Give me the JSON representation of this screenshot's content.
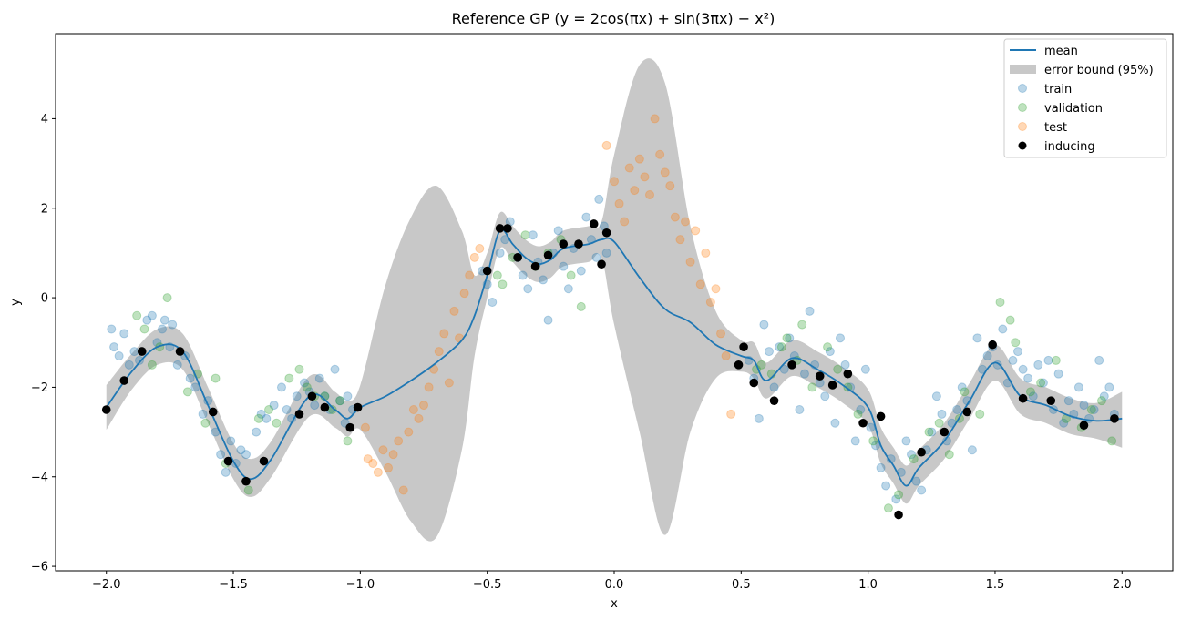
{
  "chart_data": {
    "type": "line",
    "title": "Reference GP (y = 2cos(πx) + sin(3πx) − x²)",
    "xlabel": "x",
    "ylabel": "y",
    "xlim": [
      -2.2,
      2.2
    ],
    "ylim": [
      -6.1,
      5.9
    ],
    "x_ticks": [
      -2.0,
      -1.5,
      -1.0,
      -0.5,
      0.0,
      0.5,
      1.0,
      1.5,
      2.0
    ],
    "x_tick_labels": [
      "−2.0",
      "−1.5",
      "−1.0",
      "−0.5",
      "0.0",
      "0.5",
      "1.0",
      "1.5",
      "2.0"
    ],
    "y_ticks": [
      -6,
      -4,
      -2,
      0,
      2,
      4
    ],
    "y_tick_labels": [
      "−6",
      "−4",
      "−2",
      "0",
      "2",
      "4"
    ],
    "grid": false,
    "legend_position": "top-right",
    "legend": [
      "mean",
      "error bound (95%)",
      "train",
      "validation",
      "test",
      "inducing"
    ],
    "colors": {
      "mean": "#1f77b4",
      "band": "#c8c8c8",
      "train": "#1f77b4",
      "validation": "#2ca02c",
      "test": "#ff7f0e",
      "inducing": "#000000"
    },
    "series": [
      {
        "name": "mean",
        "x": [
          -2.0,
          -1.9,
          -1.8,
          -1.7,
          -1.6,
          -1.5,
          -1.43,
          -1.35,
          -1.2,
          -1.1,
          -1.05,
          -1.0,
          -0.9,
          -0.8,
          -0.7,
          -0.6,
          -0.55,
          -0.5,
          -0.45,
          -0.4,
          -0.35,
          -0.3,
          -0.25,
          -0.2,
          -0.1,
          -0.05,
          0.0,
          0.1,
          0.2,
          0.3,
          0.4,
          0.5,
          0.55,
          0.6,
          0.7,
          0.8,
          0.9,
          1.0,
          1.05,
          1.1,
          1.15,
          1.2,
          1.3,
          1.4,
          1.5,
          1.6,
          1.7,
          1.8,
          1.9,
          2.0
        ],
        "y": [
          -2.45,
          -1.65,
          -1.1,
          -1.2,
          -2.4,
          -3.65,
          -4.05,
          -3.6,
          -2.2,
          -2.5,
          -2.7,
          -2.45,
          -2.2,
          -1.85,
          -1.45,
          -0.95,
          -0.4,
          0.5,
          1.5,
          1.2,
          0.9,
          0.75,
          0.85,
          1.1,
          1.2,
          1.3,
          1.25,
          0.45,
          -0.25,
          -0.55,
          -1.05,
          -1.3,
          -1.4,
          -1.85,
          -1.35,
          -1.6,
          -1.95,
          -2.45,
          -3.3,
          -3.75,
          -4.2,
          -3.8,
          -3.2,
          -2.3,
          -1.45,
          -2.2,
          -2.4,
          -2.65,
          -2.75,
          -2.7
        ]
      },
      {
        "name": "error bound (95%)",
        "x": [
          -2.0,
          -1.9,
          -1.8,
          -1.7,
          -1.6,
          -1.5,
          -1.43,
          -1.35,
          -1.2,
          -1.1,
          -1.05,
          -1.0,
          -0.9,
          -0.8,
          -0.7,
          -0.6,
          -0.55,
          -0.5,
          -0.45,
          -0.4,
          -0.35,
          -0.3,
          -0.25,
          -0.2,
          -0.1,
          -0.05,
          0.0,
          0.1,
          0.2,
          0.3,
          0.4,
          0.5,
          0.55,
          0.6,
          0.7,
          0.8,
          0.9,
          1.0,
          1.05,
          1.1,
          1.15,
          1.2,
          1.3,
          1.4,
          1.5,
          1.6,
          1.7,
          1.8,
          1.9,
          2.0
        ],
        "upper": [
          -1.95,
          -1.25,
          -0.7,
          -0.8,
          -2.0,
          -3.25,
          -3.6,
          -3.2,
          -1.75,
          -2.1,
          -2.3,
          -1.95,
          0.3,
          1.8,
          2.5,
          1.5,
          0.5,
          1.0,
          1.9,
          1.6,
          1.3,
          1.15,
          1.25,
          1.5,
          1.6,
          1.7,
          3.2,
          5.2,
          4.8,
          1.6,
          -0.3,
          -0.95,
          -1.0,
          -1.45,
          -0.95,
          -1.2,
          -1.55,
          -2.05,
          -2.9,
          -3.35,
          -3.75,
          -3.4,
          -2.8,
          -1.9,
          -1.05,
          -1.8,
          -2.0,
          -2.25,
          -2.35,
          -2.1
        ],
        "lower": [
          -2.95,
          -2.05,
          -1.5,
          -1.6,
          -2.8,
          -4.05,
          -4.45,
          -4.0,
          -2.65,
          -2.9,
          -3.1,
          -2.95,
          -3.9,
          -5.0,
          -5.35,
          -3.4,
          -1.3,
          0.0,
          1.1,
          0.8,
          0.5,
          0.35,
          0.45,
          0.7,
          0.8,
          0.9,
          -0.6,
          -3.0,
          -5.3,
          -3.0,
          -1.8,
          -1.65,
          -1.8,
          -2.25,
          -1.75,
          -2.0,
          -2.35,
          -2.85,
          -3.7,
          -4.15,
          -4.6,
          -4.2,
          -3.6,
          -2.7,
          -1.85,
          -2.6,
          -2.8,
          -3.05,
          -3.15,
          -3.35
        ]
      },
      {
        "name": "train",
        "x": [
          -1.98,
          -1.97,
          -1.95,
          -1.93,
          -1.91,
          -1.89,
          -1.87,
          -1.84,
          -1.82,
          -1.8,
          -1.78,
          -1.77,
          -1.75,
          -1.74,
          -1.72,
          -1.69,
          -1.67,
          -1.65,
          -1.62,
          -1.6,
          -1.57,
          -1.55,
          -1.53,
          -1.51,
          -1.49,
          -1.47,
          -1.45,
          -1.41,
          -1.39,
          -1.37,
          -1.34,
          -1.31,
          -1.29,
          -1.27,
          -1.25,
          -1.22,
          -1.2,
          -1.18,
          -1.16,
          -1.14,
          -1.12,
          -1.1,
          -1.08,
          -1.06,
          -1.05,
          -1.03,
          -0.52,
          -0.5,
          -0.48,
          -0.45,
          -0.43,
          -0.41,
          -0.38,
          -0.36,
          -0.34,
          -0.32,
          -0.3,
          -0.28,
          -0.26,
          -0.24,
          -0.22,
          -0.2,
          -0.18,
          -0.16,
          -0.13,
          -0.11,
          -0.09,
          -0.07,
          -0.06,
          -0.04,
          -0.03,
          0.53,
          0.55,
          0.57,
          0.59,
          0.61,
          0.63,
          0.65,
          0.67,
          0.69,
          0.71,
          0.73,
          0.75,
          0.77,
          0.79,
          0.81,
          0.83,
          0.85,
          0.87,
          0.89,
          0.91,
          0.93,
          0.95,
          0.97,
          0.99,
          1.01,
          1.03,
          1.05,
          1.07,
          1.09,
          1.11,
          1.13,
          1.15,
          1.17,
          1.19,
          1.21,
          1.23,
          1.25,
          1.27,
          1.29,
          1.31,
          1.33,
          1.35,
          1.37,
          1.39,
          1.41,
          1.43,
          1.45,
          1.47,
          1.49,
          1.51,
          1.53,
          1.55,
          1.57,
          1.59,
          1.61,
          1.63,
          1.65,
          1.67,
          1.69,
          1.71,
          1.73,
          1.75,
          1.77,
          1.79,
          1.81,
          1.83,
          1.85,
          1.87,
          1.89,
          1.91,
          1.93,
          1.95,
          1.97
        ],
        "y": [
          -0.7,
          -1.1,
          -1.3,
          -0.8,
          -1.5,
          -1.2,
          -1.4,
          -0.5,
          -0.4,
          -1.0,
          -0.7,
          -0.5,
          -1.1,
          -0.6,
          -1.5,
          -1.3,
          -1.8,
          -2.0,
          -2.6,
          -2.3,
          -3.0,
          -3.5,
          -3.9,
          -3.2,
          -3.7,
          -3.4,
          -3.5,
          -3.0,
          -2.6,
          -2.7,
          -2.4,
          -2.0,
          -2.5,
          -2.7,
          -2.2,
          -1.9,
          -2.1,
          -2.4,
          -1.8,
          -2.2,
          -2.5,
          -1.6,
          -2.3,
          -2.8,
          -2.2,
          -2.5,
          0.6,
          0.3,
          -0.1,
          1.0,
          1.3,
          1.7,
          0.9,
          0.5,
          0.2,
          1.4,
          0.8,
          0.4,
          -0.5,
          1.0,
          1.5,
          0.7,
          0.2,
          1.1,
          0.6,
          1.8,
          1.3,
          0.9,
          2.2,
          1.6,
          1.0,
          -1.4,
          -1.8,
          -2.7,
          -0.6,
          -1.2,
          -2.0,
          -1.1,
          -1.6,
          -0.9,
          -1.3,
          -2.5,
          -1.7,
          -0.3,
          -1.5,
          -1.9,
          -2.2,
          -1.2,
          -2.8,
          -0.9,
          -1.5,
          -2.0,
          -3.2,
          -2.5,
          -1.6,
          -2.9,
          -3.3,
          -3.8,
          -4.2,
          -3.6,
          -4.5,
          -3.9,
          -3.2,
          -3.5,
          -4.1,
          -4.3,
          -3.4,
          -3.0,
          -2.2,
          -2.6,
          -3.2,
          -2.8,
          -2.5,
          -2.0,
          -2.3,
          -3.4,
          -0.9,
          -1.6,
          -1.3,
          -1.1,
          -1.5,
          -0.7,
          -1.9,
          -1.4,
          -1.2,
          -1.6,
          -1.8,
          -2.2,
          -1.5,
          -1.9,
          -1.4,
          -2.5,
          -1.7,
          -2.8,
          -2.3,
          -2.6,
          -2.0,
          -2.4,
          -2.7,
          -2.5,
          -1.4,
          -2.2,
          -2.0,
          -2.6
        ]
      },
      {
        "name": "validation",
        "x": [
          -1.88,
          -1.85,
          -1.82,
          -1.79,
          -1.76,
          -1.68,
          -1.64,
          -1.61,
          -1.57,
          -1.53,
          -1.44,
          -1.4,
          -1.36,
          -1.33,
          -1.28,
          -1.24,
          -1.21,
          -1.18,
          -1.14,
          -1.11,
          -1.08,
          -1.05,
          -0.46,
          -0.44,
          -0.4,
          -0.35,
          -0.31,
          -0.26,
          -0.21,
          -0.17,
          -0.13,
          0.56,
          0.58,
          0.62,
          0.66,
          0.68,
          0.72,
          0.74,
          0.78,
          0.84,
          0.88,
          0.92,
          0.96,
          1.02,
          1.08,
          1.12,
          1.18,
          1.24,
          1.28,
          1.32,
          1.36,
          1.38,
          1.44,
          1.52,
          1.56,
          1.58,
          1.64,
          1.68,
          1.74,
          1.78,
          1.84,
          1.88,
          1.92,
          1.96
        ],
        "y": [
          -0.4,
          -0.7,
          -1.5,
          -1.1,
          0.0,
          -2.1,
          -1.7,
          -2.8,
          -1.8,
          -3.7,
          -4.3,
          -2.7,
          -2.5,
          -2.8,
          -1.8,
          -1.6,
          -2.0,
          -2.2,
          -2.2,
          -2.5,
          -2.3,
          -3.2,
          0.5,
          0.3,
          0.9,
          1.4,
          0.7,
          1.0,
          1.3,
          0.5,
          -0.2,
          -1.6,
          -1.5,
          -1.7,
          -1.1,
          -0.9,
          -1.4,
          -0.6,
          -2.0,
          -1.1,
          -1.6,
          -2.0,
          -2.6,
          -3.2,
          -4.7,
          -4.4,
          -3.6,
          -3.0,
          -2.8,
          -3.5,
          -2.7,
          -2.1,
          -2.6,
          -0.1,
          -0.5,
          -1.0,
          -2.1,
          -1.9,
          -1.4,
          -2.7,
          -2.9,
          -2.5,
          -2.3,
          -3.2
        ]
      },
      {
        "name": "test",
        "x": [
          -0.98,
          -0.97,
          -0.95,
          -0.93,
          -0.91,
          -0.89,
          -0.87,
          -0.85,
          -0.83,
          -0.81,
          -0.79,
          -0.77,
          -0.75,
          -0.73,
          -0.71,
          -0.69,
          -0.67,
          -0.65,
          -0.63,
          -0.61,
          -0.59,
          -0.57,
          -0.55,
          -0.53,
          -0.03,
          0.0,
          0.02,
          0.04,
          0.06,
          0.08,
          0.1,
          0.12,
          0.14,
          0.16,
          0.18,
          0.2,
          0.22,
          0.24,
          0.26,
          0.28,
          0.3,
          0.32,
          0.34,
          0.36,
          0.38,
          0.4,
          0.42,
          0.44,
          0.46
        ],
        "y": [
          -2.9,
          -3.6,
          -3.7,
          -3.9,
          -3.4,
          -3.8,
          -3.5,
          -3.2,
          -4.3,
          -3.0,
          -2.5,
          -2.7,
          -2.4,
          -2.0,
          -1.6,
          -1.2,
          -0.8,
          -1.9,
          -0.3,
          -0.9,
          0.1,
          0.5,
          0.9,
          1.1,
          3.4,
          2.6,
          2.1,
          1.7,
          2.9,
          2.4,
          3.1,
          2.7,
          2.3,
          4.0,
          3.2,
          2.8,
          2.5,
          1.8,
          1.3,
          1.7,
          0.8,
          1.5,
          0.3,
          1.0,
          -0.1,
          0.2,
          -0.8,
          -1.3,
          -2.6
        ]
      },
      {
        "name": "inducing",
        "x": [
          -2.0,
          -1.93,
          -1.86,
          -1.71,
          -1.58,
          -1.52,
          -1.45,
          -1.38,
          -1.24,
          -1.19,
          -1.14,
          -1.04,
          -1.01,
          -0.5,
          -0.45,
          -0.42,
          -0.38,
          -0.31,
          -0.26,
          -0.2,
          -0.14,
          -0.08,
          -0.05,
          -0.03,
          0.49,
          0.51,
          0.55,
          0.63,
          0.7,
          0.81,
          0.86,
          0.92,
          0.98,
          1.05,
          1.12,
          1.21,
          1.3,
          1.39,
          1.49,
          1.61,
          1.72,
          1.85,
          1.97
        ],
        "y": [
          -2.5,
          -1.85,
          -1.2,
          -1.2,
          -2.55,
          -3.65,
          -4.1,
          -3.65,
          -2.6,
          -2.2,
          -2.45,
          -2.9,
          -2.45,
          0.6,
          1.55,
          1.55,
          0.9,
          0.7,
          0.95,
          1.2,
          1.2,
          1.65,
          0.75,
          1.45,
          -1.5,
          -1.1,
          -1.9,
          -2.3,
          -1.5,
          -1.75,
          -1.95,
          -1.7,
          -2.8,
          -2.65,
          -4.85,
          -3.45,
          -3.0,
          -2.55,
          -1.05,
          -2.25,
          -2.3,
          -2.85,
          -2.7
        ]
      }
    ]
  }
}
